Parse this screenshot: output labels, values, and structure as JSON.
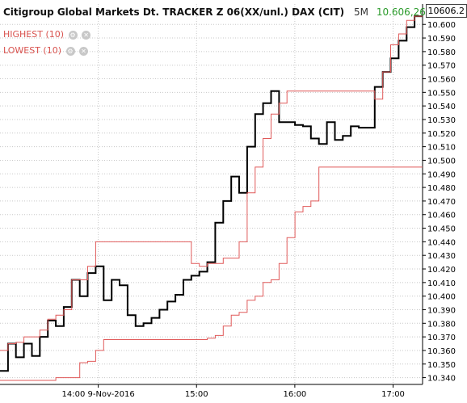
{
  "header": {
    "instrument": "Citigroup Global Markets Dt. TRACKER Z 06(XX/unl.) DAX (CIT)",
    "timeframe": "5M",
    "last_value": "10.606,26"
  },
  "indicators": [
    {
      "label": "HIGHEST (10)",
      "color": "#e05a5a"
    },
    {
      "label": "LOWEST (10)",
      "color": "#e05a5a"
    }
  ],
  "price_tag": "10606.2",
  "colors": {
    "price": "#000000",
    "channel": "#e05a5a",
    "grid": "#c8c8c8",
    "axis": "#000000"
  },
  "chart_data": {
    "type": "line",
    "step": true,
    "ylim": [
      10335,
      10615
    ],
    "xlim": [
      0,
      43
    ],
    "y_ticks": [
      10340,
      10350,
      10360,
      10370,
      10380,
      10390,
      10400,
      10410,
      10420,
      10430,
      10440,
      10450,
      10460,
      10470,
      10480,
      10490,
      10500,
      10510,
      10520,
      10530,
      10540,
      10550,
      10560,
      10570,
      10580,
      10590,
      10600
    ],
    "y_tick_labels": [
      "10.340",
      "10.350",
      "10.360",
      "10.370",
      "10.380",
      "10.390",
      "10.400",
      "10.410",
      "10.420",
      "10.430",
      "10.440",
      "10.450",
      "10.460",
      "10.470",
      "10.480",
      "10.490",
      "10.500",
      "10.510",
      "10.520",
      "10.530",
      "10.540",
      "10.550",
      "10.560",
      "10.570",
      "10.580",
      "10.590",
      "10.600"
    ],
    "x_ticks": [
      {
        "x": 10,
        "label": "14:00 9-Nov-2016"
      },
      {
        "x": 20,
        "label": "15:00"
      },
      {
        "x": 30,
        "label": "16:00"
      },
      {
        "x": 40,
        "label": "17:00"
      }
    ],
    "grid": true,
    "series": [
      {
        "name": "price",
        "color": "#000000",
        "values": [
          10345,
          10365,
          10355,
          10365,
          10356,
          10370,
          10382,
          10378,
          10392,
          10412,
          10400,
          10417,
          10422,
          10397,
          10412,
          10408,
          10386,
          10378,
          10380,
          10384,
          10390,
          10396,
          10401,
          10412,
          10415,
          10418,
          10425,
          10454,
          10470,
          10488,
          10476,
          10510,
          10534,
          10542,
          10551,
          10528,
          10528,
          10526,
          10525,
          10516,
          10512,
          10528,
          10515,
          10518,
          10525,
          10524,
          10524,
          10554,
          10565,
          10575,
          10588,
          10598,
          10606
        ]
      },
      {
        "name": "HIGHEST (10)",
        "color": "#e05a5a",
        "values": [
          10360,
          10365,
          10366,
          10370,
          10370,
          10375,
          10383,
          10386,
          10390,
          10412,
          10412,
          10422,
          10440,
          10440,
          10440,
          10440,
          10440,
          10440,
          10440,
          10440,
          10440,
          10440,
          10440,
          10440,
          10424,
          10422,
          10424,
          10424,
          10428,
          10428,
          10440,
          10476,
          10495,
          10516,
          10534,
          10542,
          10551,
          10551,
          10551,
          10551,
          10551,
          10551,
          10551,
          10551,
          10551,
          10551,
          10551,
          10545,
          10565,
          10585,
          10593,
          10603,
          10606
        ]
      },
      {
        "name": "LOWEST (10)",
        "color": "#e05a5a",
        "values": [
          10338,
          10338,
          10338,
          10338,
          10338,
          10338,
          10338,
          10340,
          10340,
          10340,
          10351,
          10352,
          10360,
          10368,
          10368,
          10368,
          10368,
          10368,
          10368,
          10368,
          10368,
          10368,
          10368,
          10368,
          10368,
          10368,
          10369,
          10371,
          10378,
          10386,
          10388,
          10397,
          10400,
          10410,
          10412,
          10424,
          10443,
          10462,
          10466,
          10470,
          10495,
          10495,
          10495,
          10495,
          10495,
          10495,
          10495,
          10495,
          10495,
          10495,
          10495,
          10495,
          10495
        ]
      }
    ]
  }
}
